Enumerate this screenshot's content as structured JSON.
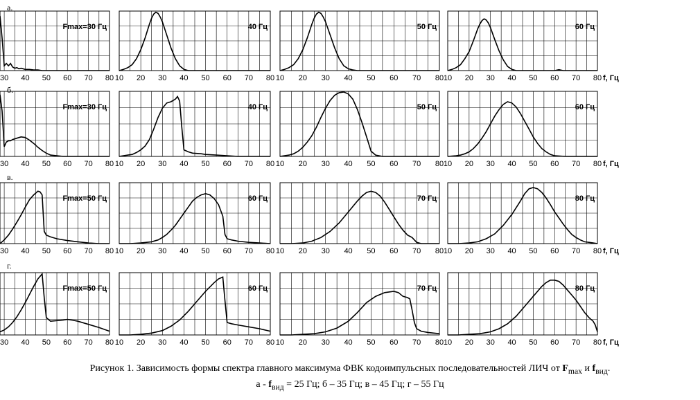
{
  "chart_data": [
    {
      "type": "line",
      "row_label": "а.",
      "label": "Fmax=30 Гц",
      "x_ticks": [
        "30",
        "40",
        "50",
        "60",
        "70",
        "80"
      ],
      "xlim": [
        28,
        80
      ],
      "x": [
        28,
        29,
        30,
        31,
        32,
        33,
        34,
        35,
        36,
        37,
        38,
        40,
        42,
        44,
        46,
        48,
        50,
        55,
        60,
        65,
        70,
        75,
        80
      ],
      "y": [
        0.92,
        0.55,
        0.08,
        0.12,
        0.08,
        0.12,
        0.06,
        0.04,
        0.05,
        0.03,
        0.04,
        0.02,
        0.02,
        0.01,
        0.01,
        0.0,
        0.0,
        0.0,
        0.0,
        0.0,
        0.0,
        0.0,
        0.0
      ]
    },
    {
      "type": "line",
      "label": "40 Гц",
      "x_ticks": [
        "10",
        "20",
        "30",
        "40",
        "50",
        "60",
        "70",
        "80"
      ],
      "xlim": [
        10,
        80
      ],
      "x": [
        10,
        12,
        14,
        16,
        18,
        20,
        22,
        24,
        25,
        26,
        27,
        28,
        29,
        30,
        32,
        34,
        36,
        38,
        40,
        42,
        44,
        50,
        60,
        70,
        80
      ],
      "y": [
        0.0,
        0.02,
        0.05,
        0.1,
        0.2,
        0.35,
        0.55,
        0.78,
        0.88,
        0.95,
        0.98,
        0.96,
        0.9,
        0.82,
        0.6,
        0.38,
        0.2,
        0.08,
        0.02,
        0.0,
        0.0,
        0.0,
        0.0,
        0.0,
        0.0
      ]
    },
    {
      "type": "line",
      "label": "50 Гц",
      "x_ticks": [
        "10",
        "20",
        "30",
        "40",
        "50",
        "60",
        "70",
        "80"
      ],
      "xlim": [
        10,
        80
      ],
      "x": [
        10,
        12,
        14,
        16,
        18,
        20,
        22,
        24,
        25,
        26,
        27,
        28,
        29,
        30,
        32,
        34,
        36,
        38,
        40,
        42,
        44,
        50,
        60,
        70,
        80
      ],
      "y": [
        0.0,
        0.02,
        0.05,
        0.1,
        0.2,
        0.35,
        0.55,
        0.78,
        0.88,
        0.95,
        0.98,
        0.96,
        0.9,
        0.82,
        0.6,
        0.38,
        0.2,
        0.08,
        0.03,
        0.01,
        0.0,
        0.0,
        0.0,
        0.0,
        0.0
      ]
    },
    {
      "type": "line",
      "label": "60 Гц",
      "x_ticks": [
        "10",
        "20",
        "30",
        "40",
        "50",
        "60",
        "70",
        "80"
      ],
      "xlim": [
        10,
        80
      ],
      "x": [
        10,
        12,
        14,
        16,
        18,
        20,
        22,
        24,
        25,
        26,
        27,
        28,
        29,
        30,
        32,
        34,
        36,
        38,
        40,
        42,
        44,
        50,
        60,
        62,
        64,
        70,
        80
      ],
      "y": [
        0.0,
        0.02,
        0.05,
        0.1,
        0.2,
        0.32,
        0.5,
        0.7,
        0.78,
        0.84,
        0.87,
        0.85,
        0.8,
        0.72,
        0.52,
        0.33,
        0.18,
        0.07,
        0.02,
        0.0,
        0.0,
        0.0,
        0.0,
        0.015,
        0.0,
        0.0,
        0.0
      ]
    },
    {
      "type": "line",
      "row_label": "б.",
      "label": "Fmax=30 Гц",
      "x_ticks": [
        "30",
        "40",
        "50",
        "60",
        "70",
        "80"
      ],
      "xlim": [
        28,
        80
      ],
      "x": [
        28,
        29,
        30,
        31,
        32,
        33,
        34,
        36,
        38,
        40,
        42,
        44,
        46,
        48,
        50,
        52,
        55,
        58,
        60,
        65,
        70,
        80
      ],
      "y": [
        0.95,
        0.7,
        0.15,
        0.22,
        0.24,
        0.24,
        0.26,
        0.28,
        0.3,
        0.29,
        0.25,
        0.2,
        0.14,
        0.09,
        0.05,
        0.02,
        0.01,
        0.0,
        0.0,
        0.0,
        0.0,
        0.0
      ]
    },
    {
      "type": "line",
      "label": "40 Гц",
      "x_ticks": [
        "10",
        "20",
        "30",
        "40",
        "50",
        "60",
        "70",
        "80"
      ],
      "xlim": [
        10,
        80
      ],
      "x": [
        10,
        14,
        16,
        18,
        20,
        22,
        24,
        26,
        28,
        30,
        32,
        34,
        36,
        37,
        38,
        39,
        40,
        42,
        44,
        48,
        50,
        55,
        60,
        65,
        70,
        80
      ],
      "y": [
        0.0,
        0.02,
        0.03,
        0.06,
        0.1,
        0.16,
        0.26,
        0.42,
        0.6,
        0.74,
        0.82,
        0.84,
        0.88,
        0.92,
        0.85,
        0.45,
        0.1,
        0.07,
        0.05,
        0.04,
        0.03,
        0.02,
        0.01,
        0.0,
        0.0,
        0.0
      ]
    },
    {
      "type": "line",
      "label": "50 Гц",
      "x_ticks": [
        "10",
        "20",
        "30",
        "40",
        "50",
        "60",
        "70",
        "80"
      ],
      "xlim": [
        10,
        80
      ],
      "x": [
        10,
        14,
        16,
        18,
        20,
        22,
        24,
        26,
        28,
        30,
        32,
        34,
        36,
        38,
        40,
        42,
        44,
        46,
        48,
        50,
        52,
        55,
        60,
        70,
        80
      ],
      "y": [
        0.0,
        0.02,
        0.04,
        0.08,
        0.14,
        0.22,
        0.32,
        0.45,
        0.6,
        0.74,
        0.86,
        0.94,
        0.98,
        0.99,
        0.96,
        0.88,
        0.72,
        0.52,
        0.3,
        0.08,
        0.02,
        0.0,
        0.0,
        0.0,
        0.0
      ]
    },
    {
      "type": "line",
      "label": "60 Гц",
      "x_ticks": [
        "10",
        "20",
        "30",
        "40",
        "50",
        "60",
        "70",
        "80"
      ],
      "xlim": [
        10,
        80
      ],
      "x": [
        10,
        14,
        16,
        18,
        20,
        22,
        24,
        26,
        28,
        30,
        32,
        34,
        36,
        38,
        40,
        42,
        44,
        46,
        48,
        50,
        52,
        54,
        56,
        58,
        60,
        65,
        70,
        80
      ],
      "y": [
        0.0,
        0.01,
        0.02,
        0.04,
        0.07,
        0.12,
        0.19,
        0.28,
        0.38,
        0.5,
        0.62,
        0.72,
        0.8,
        0.84,
        0.82,
        0.76,
        0.66,
        0.54,
        0.42,
        0.3,
        0.2,
        0.12,
        0.07,
        0.03,
        0.01,
        0.0,
        0.0,
        0.0
      ]
    },
    {
      "type": "line",
      "row_label": "в.",
      "label": "Fmax=50 Гц",
      "x_ticks": [
        "30",
        "40",
        "50",
        "60",
        "70",
        "80"
      ],
      "xlim": [
        28,
        80
      ],
      "x": [
        28,
        30,
        32,
        34,
        36,
        38,
        40,
        42,
        44,
        46,
        47,
        48,
        49,
        50,
        52,
        55,
        60,
        65,
        70,
        75,
        80
      ],
      "y": [
        0.0,
        0.06,
        0.14,
        0.24,
        0.35,
        0.47,
        0.6,
        0.72,
        0.8,
        0.86,
        0.85,
        0.8,
        0.2,
        0.14,
        0.11,
        0.08,
        0.05,
        0.03,
        0.01,
        0.0,
        0.0
      ]
    },
    {
      "type": "line",
      "label": "60 Гц",
      "x_ticks": [
        "10",
        "20",
        "30",
        "40",
        "50",
        "60",
        "70",
        "80"
      ],
      "xlim": [
        10,
        80
      ],
      "x": [
        10,
        15,
        20,
        25,
        28,
        30,
        32,
        34,
        36,
        38,
        40,
        42,
        44,
        46,
        48,
        50,
        52,
        54,
        56,
        58,
        59,
        60,
        62,
        65,
        70,
        75,
        80
      ],
      "y": [
        0.0,
        0.0,
        0.01,
        0.03,
        0.06,
        0.1,
        0.15,
        0.22,
        0.3,
        0.4,
        0.5,
        0.6,
        0.7,
        0.76,
        0.8,
        0.82,
        0.8,
        0.74,
        0.64,
        0.45,
        0.15,
        0.08,
        0.06,
        0.04,
        0.02,
        0.01,
        0.0
      ]
    },
    {
      "type": "line",
      "label": "70 Гц",
      "x_ticks": [
        "10",
        "20",
        "30",
        "40",
        "50",
        "60",
        "70",
        "80"
      ],
      "xlim": [
        10,
        80
      ],
      "x": [
        10,
        15,
        20,
        24,
        28,
        32,
        36,
        40,
        44,
        46,
        48,
        50,
        52,
        54,
        56,
        58,
        60,
        62,
        64,
        66,
        68,
        70,
        72,
        80
      ],
      "y": [
        0.0,
        0.0,
        0.01,
        0.04,
        0.1,
        0.2,
        0.34,
        0.52,
        0.7,
        0.78,
        0.84,
        0.86,
        0.84,
        0.78,
        0.68,
        0.56,
        0.44,
        0.32,
        0.22,
        0.14,
        0.1,
        0.02,
        0.0,
        0.0
      ]
    },
    {
      "type": "line",
      "label": "80 Гц",
      "x_ticks": [
        "10",
        "20",
        "30",
        "40",
        "50",
        "60",
        "70",
        "80"
      ],
      "xlim": [
        10,
        80
      ],
      "x": [
        10,
        15,
        20,
        24,
        28,
        32,
        36,
        40,
        44,
        46,
        48,
        50,
        52,
        54,
        56,
        58,
        60,
        62,
        64,
        66,
        68,
        70,
        72,
        74,
        76,
        78,
        80
      ],
      "y": [
        0.0,
        0.0,
        0.01,
        0.03,
        0.08,
        0.16,
        0.3,
        0.48,
        0.7,
        0.82,
        0.9,
        0.92,
        0.9,
        0.84,
        0.75,
        0.64,
        0.52,
        0.42,
        0.32,
        0.23,
        0.15,
        0.1,
        0.06,
        0.03,
        0.02,
        0.01,
        0.0
      ]
    },
    {
      "type": "line",
      "row_label": "г.",
      "label": "Fmax=50 Гц",
      "x_ticks": [
        "30",
        "40",
        "50",
        "60",
        "70",
        "80"
      ],
      "xlim": [
        28,
        80
      ],
      "x": [
        28,
        30,
        32,
        34,
        36,
        38,
        40,
        42,
        44,
        46,
        48,
        49,
        50,
        52,
        55,
        58,
        60,
        62,
        65,
        70,
        75,
        80
      ],
      "y": [
        0.05,
        0.08,
        0.13,
        0.2,
        0.29,
        0.4,
        0.52,
        0.65,
        0.78,
        0.9,
        0.98,
        0.6,
        0.28,
        0.22,
        0.23,
        0.24,
        0.25,
        0.24,
        0.22,
        0.17,
        0.12,
        0.06
      ]
    },
    {
      "type": "line",
      "label": "60 Гц",
      "x_ticks": [
        "10",
        "20",
        "30",
        "40",
        "50",
        "60",
        "70",
        "80"
      ],
      "xlim": [
        10,
        80
      ],
      "x": [
        10,
        15,
        20,
        25,
        30,
        34,
        38,
        42,
        46,
        50,
        54,
        56,
        58,
        59,
        60,
        62,
        65,
        70,
        75,
        80
      ],
      "y": [
        0.0,
        0.0,
        0.01,
        0.03,
        0.07,
        0.14,
        0.24,
        0.38,
        0.54,
        0.7,
        0.84,
        0.9,
        0.93,
        0.55,
        0.2,
        0.18,
        0.16,
        0.13,
        0.1,
        0.06
      ]
    },
    {
      "type": "line",
      "label": "70 Гц",
      "x_ticks": [
        "10",
        "20",
        "30",
        "40",
        "50",
        "60",
        "70",
        "80"
      ],
      "xlim": [
        10,
        80
      ],
      "x": [
        10,
        15,
        20,
        25,
        30,
        35,
        40,
        44,
        48,
        52,
        56,
        60,
        62,
        64,
        66,
        67,
        68,
        69,
        70,
        72,
        75,
        80
      ],
      "y": [
        0.0,
        0.0,
        0.01,
        0.02,
        0.05,
        0.11,
        0.22,
        0.36,
        0.52,
        0.62,
        0.68,
        0.7,
        0.68,
        0.62,
        0.6,
        0.58,
        0.4,
        0.2,
        0.1,
        0.06,
        0.04,
        0.02
      ]
    },
    {
      "type": "line",
      "label": "80 Гц",
      "x_ticks": [
        "10",
        "20",
        "30",
        "40",
        "50",
        "60",
        "70",
        "80"
      ],
      "xlim": [
        10,
        80
      ],
      "x": [
        10,
        15,
        20,
        25,
        30,
        34,
        38,
        42,
        46,
        50,
        52,
        54,
        56,
        58,
        60,
        62,
        64,
        66,
        68,
        70,
        72,
        74,
        76,
        78,
        79,
        80
      ],
      "y": [
        0.0,
        0.0,
        0.01,
        0.02,
        0.05,
        0.1,
        0.18,
        0.3,
        0.46,
        0.62,
        0.7,
        0.78,
        0.84,
        0.88,
        0.88,
        0.86,
        0.8,
        0.72,
        0.64,
        0.56,
        0.46,
        0.36,
        0.28,
        0.22,
        0.16,
        0.05
      ]
    }
  ],
  "axis_unit": "f, Гц",
  "caption": {
    "line1_prefix": "Рисунок 1. Зависимость формы спектра главного максимума ФВК кодоимпульсных последовательностей ЛИЧ от ",
    "F": "F",
    "F_sub": "max",
    "and": " и ",
    "f": "f",
    "f_sub": "вид",
    "line1_end": ".",
    "line2_a": "а - ",
    "line2_f": "f",
    "line2_sub": "вид",
    "line2_rest": " = 25 Гц; б – 35 Гц; в – 45 Гц; г – 55 Гц"
  }
}
